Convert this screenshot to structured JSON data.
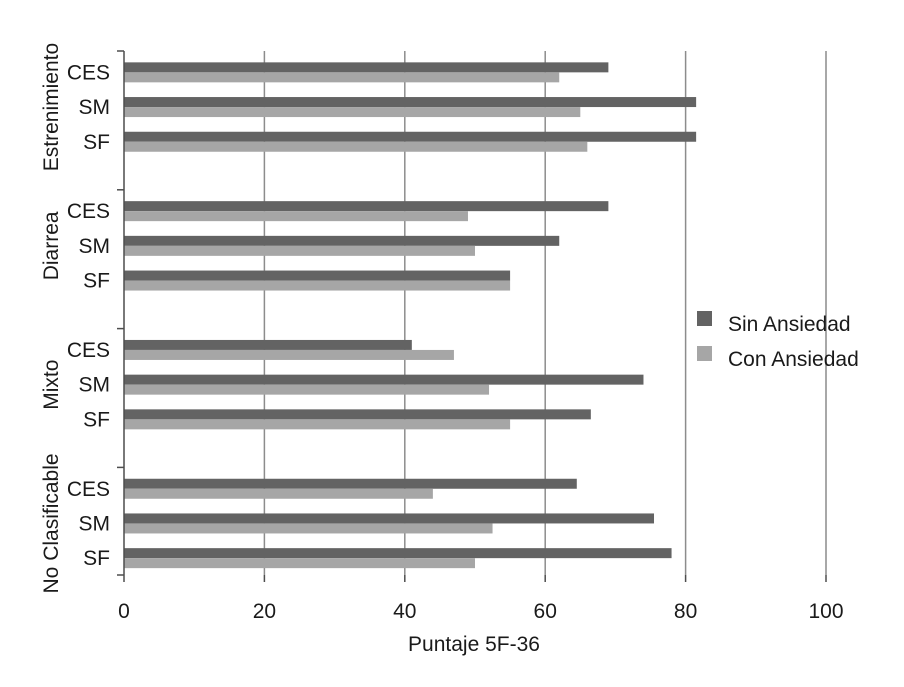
{
  "chart_data": {
    "type": "bar",
    "orientation": "horizontal",
    "xlabel": "Puntaje 5F-36",
    "xlim": [
      0,
      100
    ],
    "xticks": [
      0,
      20,
      40,
      60,
      80,
      100
    ],
    "grid": true,
    "legend_position": "right",
    "groups": [
      {
        "name": "Estrenimiento",
        "categories": [
          "CES",
          "SM",
          "SF"
        ]
      },
      {
        "name": "Diarrea",
        "categories": [
          "CES",
          "SM",
          "SF"
        ]
      },
      {
        "name": "Mixto",
        "categories": [
          "CES",
          "SM",
          "SF"
        ]
      },
      {
        "name": "No Clasificable",
        "categories": [
          "CES",
          "SM",
          "SF"
        ]
      }
    ],
    "series": [
      {
        "name": "Sin Ansiedad",
        "color": "#636363",
        "values": [
          [
            69,
            81.5,
            81.5
          ],
          [
            69,
            62,
            55
          ],
          [
            41,
            74,
            66.5
          ],
          [
            64.5,
            75.5,
            78
          ]
        ]
      },
      {
        "name": "Con Ansiedad",
        "color": "#a6a6a6",
        "values": [
          [
            62,
            65,
            66
          ],
          [
            49,
            50,
            55
          ],
          [
            47,
            52,
            55
          ],
          [
            44,
            52.5,
            50
          ]
        ]
      }
    ],
    "grid_color": "#8c8c8c",
    "axis_color": "#4d4d4d"
  }
}
